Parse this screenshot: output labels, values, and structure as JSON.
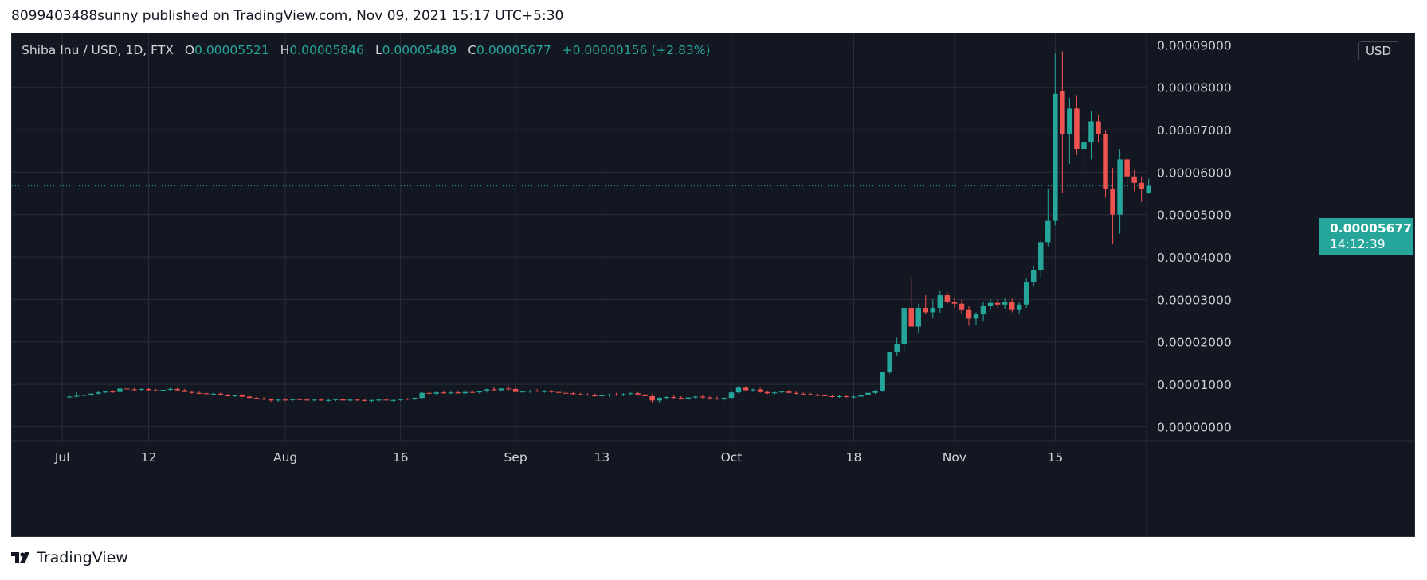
{
  "publish_line": "8099403488sunny published on TradingView.com, Nov 09, 2021 15:17 UTC+5:30",
  "legend": {
    "symbol": "Shiba Inu / USD, 1D, FTX",
    "open_label": "O",
    "open": "0.00005521",
    "high_label": "H",
    "high": "0.00005846",
    "low_label": "L",
    "low": "0.00005489",
    "close_label": "C",
    "close": "0.00005677",
    "change": "+0.00000156 (+2.83%)"
  },
  "currency_button": "USD",
  "last_price": {
    "price": "0.00005677",
    "countdown": "14:12:39",
    "value": 5.677e-05
  },
  "brand": "TradingView",
  "colors": {
    "up": "#26a69a",
    "down": "#ef5350",
    "background": "#131722",
    "grid": "#2a2e39",
    "text": "#d1d4dc"
  },
  "chart_data": {
    "type": "candlestick",
    "price_scale_labels": [
      "0.00009000",
      "0.00008000",
      "0.00007000",
      "0.00006000",
      "0.00005000",
      "0.00004000",
      "0.00003000",
      "0.00002000",
      "0.00001000",
      "0.00000000"
    ],
    "price_scale_values": [
      9e-05,
      8e-05,
      7e-05,
      6e-05,
      5e-05,
      4e-05,
      3e-05,
      2e-05,
      1e-05,
      0
    ],
    "ylim": [
      -3.3e-06,
      9.27e-05
    ],
    "time_axis_labels": [
      {
        "label": "Jul",
        "day": -1
      },
      {
        "label": "12",
        "day": 11
      },
      {
        "label": "Aug",
        "day": 30
      },
      {
        "label": "16",
        "day": 46
      },
      {
        "label": "Sep",
        "day": 62
      },
      {
        "label": "13",
        "day": 74
      },
      {
        "label": "Oct",
        "day": 92
      },
      {
        "label": "18",
        "day": 109
      },
      {
        "label": "Nov",
        "day": 123
      },
      {
        "label": "15",
        "day": 137
      }
    ],
    "xlim": [
      -8,
      149.7
    ],
    "day_zero": "2021-07-01",
    "candles_ohlc": [
      [
        7e-06,
        7.3e-06,
        6.8e-06,
        7.1e-06
      ],
      [
        7.1e-06,
        8.1e-06,
        6.9e-06,
        7.3e-06
      ],
      [
        7.3e-06,
        7.7e-06,
        7.1e-06,
        7.5e-06
      ],
      [
        7.5e-06,
        7.9e-06,
        7.3e-06,
        7.8e-06
      ],
      [
        7.8e-06,
        8.5e-06,
        7.6e-06,
        8.1e-06
      ],
      [
        8.1e-06,
        8.4e-06,
        7.9e-06,
        8.3e-06
      ],
      [
        8.3e-06,
        8.6e-06,
        8e-06,
        8.2e-06
      ],
      [
        8.2e-06,
        9.2e-06,
        8e-06,
        9e-06
      ],
      [
        9e-06,
        9.2e-06,
        8.6e-06,
        8.8e-06
      ],
      [
        8.8e-06,
        9.1e-06,
        8.4e-06,
        8.7e-06
      ],
      [
        8.7e-06,
        9e-06,
        8.4e-06,
        8.9e-06
      ],
      [
        8.9e-06,
        9.1e-06,
        8.5e-06,
        8.6e-06
      ],
      [
        8.6e-06,
        8.9e-06,
        8.3e-06,
        8.5e-06
      ],
      [
        8.5e-06,
        8.8e-06,
        8.3e-06,
        8.7e-06
      ],
      [
        8.7e-06,
        9.2e-06,
        8.5e-06,
        8.9e-06
      ],
      [
        8.9e-06,
        9.2e-06,
        8.5e-06,
        8.6e-06
      ],
      [
        8.6e-06,
        8.9e-06,
        8.2e-06,
        8.2e-06
      ],
      [
        8.2e-06,
        8.4e-06,
        7.8e-06,
        8e-06
      ],
      [
        8e-06,
        8.3e-06,
        7.7e-06,
        7.9e-06
      ],
      [
        7.9e-06,
        8.1e-06,
        7.5e-06,
        7.7e-06
      ],
      [
        7.7e-06,
        8e-06,
        7.4e-06,
        7.8e-06
      ],
      [
        7.8e-06,
        8.1e-06,
        7.4e-06,
        7.5e-06
      ],
      [
        7.5e-06,
        7.8e-06,
        7.1e-06,
        7.2e-06
      ],
      [
        7.2e-06,
        7.6e-06,
        7e-06,
        7.4e-06
      ],
      [
        7.4e-06,
        7.7e-06,
        7e-06,
        7.1e-06
      ],
      [
        7.1e-06,
        7.4e-06,
        6.7e-06,
        6.8e-06
      ],
      [
        6.8e-06,
        7.1e-06,
        6.5e-06,
        6.6e-06
      ],
      [
        6.6e-06,
        7e-06,
        6.3e-06,
        6.5e-06
      ],
      [
        6.5e-06,
        6.7e-06,
        5.9e-06,
        6.2e-06
      ],
      [
        6.2e-06,
        6.6e-06,
        5.9e-06,
        6.4e-06
      ],
      [
        6.4e-06,
        6.7e-06,
        6.1e-06,
        6.3e-06
      ],
      [
        6.3e-06,
        6.6e-06,
        6e-06,
        6.5e-06
      ],
      [
        6.5e-06,
        6.8e-06,
        6.2e-06,
        6.4e-06
      ],
      [
        6.4e-06,
        6.7e-06,
        6.1e-06,
        6.3e-06
      ],
      [
        6.3e-06,
        6.6e-06,
        6e-06,
        6.4e-06
      ],
      [
        6.4e-06,
        6.7e-06,
        6.1e-06,
        6.2e-06
      ],
      [
        6.2e-06,
        6.5e-06,
        5.9e-06,
        6.3e-06
      ],
      [
        6.3e-06,
        6.6e-06,
        6e-06,
        6.5e-06
      ],
      [
        6.5e-06,
        6.7e-06,
        6.1e-06,
        6.2e-06
      ],
      [
        6.2e-06,
        6.5e-06,
        6e-06,
        6.4e-06
      ],
      [
        6.4e-06,
        6.6e-06,
        6.1e-06,
        6.3e-06
      ],
      [
        6.3e-06,
        6.6e-06,
        6e-06,
        6.1e-06
      ],
      [
        6.1e-06,
        6.4e-06,
        5.8e-06,
        6.3e-06
      ],
      [
        6.3e-06,
        6.6e-06,
        6e-06,
        6.4e-06
      ],
      [
        6.4e-06,
        6.7e-06,
        6.1e-06,
        6.2e-06
      ],
      [
        6.2e-06,
        6.5e-06,
        5.9e-06,
        6.3e-06
      ],
      [
        6.3e-06,
        6.6e-06,
        6.1e-06,
        6.6e-06
      ],
      [
        6.6e-06,
        6.8e-06,
        6.3e-06,
        6.5e-06
      ],
      [
        6.5e-06,
        6.9e-06,
        6.3e-06,
        6.8e-06
      ],
      [
        6.8e-06,
        8.2e-06,
        6.6e-06,
        8e-06
      ],
      [
        8e-06,
        8.5e-06,
        7.6e-06,
        7.8e-06
      ],
      [
        7.8e-06,
        8.3e-06,
        7.5e-06,
        8.1e-06
      ],
      [
        8.1e-06,
        8.4e-06,
        7.8e-06,
        7.9e-06
      ],
      [
        7.9e-06,
        8.3e-06,
        7.7e-06,
        8.1e-06
      ],
      [
        8.1e-06,
        8.5e-06,
        7.8e-06,
        7.9e-06
      ],
      [
        7.9e-06,
        8.3e-06,
        7.6e-06,
        8.2e-06
      ],
      [
        8.2e-06,
        8.6e-06,
        7.9e-06,
        8.1e-06
      ],
      [
        8.1e-06,
        8.5e-06,
        7.8e-06,
        8.4e-06
      ],
      [
        8.4e-06,
        9e-06,
        8.1e-06,
        8.8e-06
      ],
      [
        8.8e-06,
        9.3e-06,
        8.4e-06,
        8.6e-06
      ],
      [
        8.6e-06,
        9.1e-06,
        8.3e-06,
        9e-06
      ],
      [
        9e-06,
        9.7e-06,
        8.6e-06,
        8.9e-06
      ],
      [
        8.9e-06,
        9.5e-06,
        8.4e-06,
        8.2e-06
      ],
      [
        8.2e-06,
        8.6e-06,
        7.9e-06,
        8.3e-06
      ],
      [
        8.3e-06,
        8.7e-06,
        8e-06,
        8.5e-06
      ],
      [
        8.5e-06,
        8.9e-06,
        8.2e-06,
        8.3e-06
      ],
      [
        8.3e-06,
        8.7e-06,
        8e-06,
        8.4e-06
      ],
      [
        8.4e-06,
        8.7e-06,
        8e-06,
        8.2e-06
      ],
      [
        8.2e-06,
        8.5e-06,
        7.8e-06,
        8e-06
      ],
      [
        8e-06,
        8.3e-06,
        7.7e-06,
        7.9e-06
      ],
      [
        7.9e-06,
        8.2e-06,
        7.6e-06,
        7.7e-06
      ],
      [
        7.7e-06,
        8e-06,
        7.4e-06,
        7.6e-06
      ],
      [
        7.6e-06,
        7.9e-06,
        7.3e-06,
        7.5e-06
      ],
      [
        7.5e-06,
        7.8e-06,
        7.1e-06,
        7.2e-06
      ],
      [
        7.2e-06,
        7.6e-06,
        6.9e-06,
        7.4e-06
      ],
      [
        7.4e-06,
        7.8e-06,
        7.1e-06,
        7.6e-06
      ],
      [
        7.6e-06,
        8e-06,
        7.3e-06,
        7.5e-06
      ],
      [
        7.5e-06,
        7.9e-06,
        7.2e-06,
        7.7e-06
      ],
      [
        7.7e-06,
        8.1e-06,
        7.4e-06,
        7.9e-06
      ],
      [
        7.9e-06,
        8.2e-06,
        7.5e-06,
        7.6e-06
      ],
      [
        7.6e-06,
        8e-06,
        7.2e-06,
        7.2e-06
      ],
      [
        7.2e-06,
        7.7e-06,
        5.5e-06,
        6.2e-06
      ],
      [
        6.2e-06,
        7e-06,
        5.7e-06,
        6.8e-06
      ],
      [
        6.8e-06,
        7.2e-06,
        6.4e-06,
        7e-06
      ],
      [
        7e-06,
        7.4e-06,
        6.6e-06,
        6.8e-06
      ],
      [
        6.8e-06,
        7.2e-06,
        6.4e-06,
        6.6e-06
      ],
      [
        6.6e-06,
        7e-06,
        6.2e-06,
        6.9e-06
      ],
      [
        6.9e-06,
        7.3e-06,
        6.5e-06,
        7.1e-06
      ],
      [
        7.1e-06,
        7.5e-06,
        6.7e-06,
        6.9e-06
      ],
      [
        6.9e-06,
        7.2e-06,
        6.4e-06,
        6.7e-06
      ],
      [
        6.7e-06,
        7.1e-06,
        6.3e-06,
        6.5e-06
      ],
      [
        6.5e-06,
        6.9e-06,
        6.2e-06,
        6.8e-06
      ],
      [
        6.8e-06,
        8.3e-06,
        6.6e-06,
        8.1e-06
      ],
      [
        8.1e-06,
        9.7e-06,
        7.8e-06,
        9.2e-06
      ],
      [
        9.2e-06,
        9.6e-06,
        8.4e-06,
        8.6e-06
      ],
      [
        8.6e-06,
        9e-06,
        8.2e-06,
        8.8e-06
      ],
      [
        8.8e-06,
        9.2e-06,
        8e-06,
        8.2e-06
      ],
      [
        8.2e-06,
        8.5e-06,
        7.7e-06,
        7.9e-06
      ],
      [
        7.9e-06,
        8.3e-06,
        7.6e-06,
        8.1e-06
      ],
      [
        8.1e-06,
        8.5e-06,
        7.8e-06,
        8.3e-06
      ],
      [
        8.3e-06,
        8.6e-06,
        7.9e-06,
        8e-06
      ],
      [
        8e-06,
        8.3e-06,
        7.6e-06,
        7.8e-06
      ],
      [
        7.8e-06,
        8.1e-06,
        7.5e-06,
        7.7e-06
      ],
      [
        7.7e-06,
        8e-06,
        7.4e-06,
        7.5e-06
      ],
      [
        7.5e-06,
        7.8e-06,
        7.2e-06,
        7.4e-06
      ],
      [
        7.4e-06,
        7.7e-06,
        7.1e-06,
        7.2e-06
      ],
      [
        7.2e-06,
        7.5e-06,
        6.9e-06,
        7.1e-06
      ],
      [
        7.1e-06,
        7.4e-06,
        6.8e-06,
        7.2e-06
      ],
      [
        7.2e-06,
        7.5e-06,
        6.9e-06,
        7e-06
      ],
      [
        7e-06,
        7.3e-06,
        6.7e-06,
        7.1e-06
      ],
      [
        7.1e-06,
        7.5e-06,
        6.8e-06,
        7.4e-06
      ],
      [
        7.4e-06,
        8.2e-06,
        7.2e-06,
        8e-06
      ],
      [
        8e-06,
        8.7e-06,
        7.7e-06,
        8.4e-06
      ],
      [
        8.4e-06,
        1.08e-05,
        8.2e-06,
        1.3e-05
      ],
      [
        1.3e-05,
        1.6e-05,
        1.25e-05,
        1.75e-05
      ],
      [
        1.75e-05,
        2.1e-05,
        1.68e-05,
        1.95e-05
      ],
      [
        1.95e-05,
        2.4e-05,
        1.8e-05,
        2.8e-05
      ],
      [
        2.8e-05,
        3.52e-05,
        2.5e-05,
        2.36e-05
      ],
      [
        2.36e-05,
        2.9e-05,
        2.2e-05,
        2.8e-05
      ],
      [
        2.8e-05,
        3.1e-05,
        2.65e-05,
        2.7e-05
      ],
      [
        2.7e-05,
        3e-05,
        2.55e-05,
        2.8e-05
      ],
      [
        2.8e-05,
        3.2e-05,
        2.68e-05,
        3.1e-05
      ],
      [
        3.1e-05,
        3.18e-05,
        2.9e-05,
        2.95e-05
      ],
      [
        2.95e-05,
        3.05e-05,
        2.8e-05,
        2.9e-05
      ],
      [
        2.9e-05,
        3e-05,
        2.65e-05,
        2.75e-05
      ],
      [
        2.75e-05,
        2.85e-05,
        2.38e-05,
        2.55e-05
      ],
      [
        2.55e-05,
        2.7e-05,
        2.4e-05,
        2.65e-05
      ],
      [
        2.65e-05,
        2.95e-05,
        2.5e-05,
        2.85e-05
      ],
      [
        2.85e-05,
        3e-05,
        2.75e-05,
        2.92e-05
      ],
      [
        2.92e-05,
        3e-05,
        2.8e-05,
        2.88e-05
      ],
      [
        2.88e-05,
        3.02e-05,
        2.78e-05,
        2.95e-05
      ],
      [
        2.95e-05,
        3.02e-05,
        2.7e-05,
        2.75e-05
      ],
      [
        2.75e-05,
        2.95e-05,
        2.65e-05,
        2.88e-05
      ],
      [
        2.88e-05,
        3.5e-05,
        2.8e-05,
        3.4e-05
      ],
      [
        3.4e-05,
        3.8e-05,
        3.3e-05,
        3.7e-05
      ],
      [
        3.7e-05,
        4.4e-05,
        3.5e-05,
        4.35e-05
      ],
      [
        4.35e-05,
        5.6e-05,
        4.25e-05,
        4.85e-05
      ],
      [
        4.85e-05,
        8.8e-05,
        4.75e-05,
        7.85e-05
      ],
      [
        7.9e-05,
        8.85e-05,
        5.5e-05,
        6.9e-05
      ],
      [
        6.9e-05,
        7.75e-05,
        6.2e-05,
        7.5e-05
      ],
      [
        7.5e-05,
        7.8e-05,
        6.4e-05,
        6.55e-05
      ],
      [
        6.55e-05,
        7.2e-05,
        6e-05,
        6.7e-05
      ],
      [
        6.7e-05,
        7.45e-05,
        6.3e-05,
        7.2e-05
      ],
      [
        7.2e-05,
        7.35e-05,
        6.7e-05,
        6.9e-05
      ],
      [
        6.9e-05,
        7e-05,
        5.4e-05,
        5.6e-05
      ],
      [
        5.6e-05,
        6.1e-05,
        4.3e-05,
        5e-05
      ],
      [
        5e-05,
        6.55e-05,
        4.55e-05,
        6.3e-05
      ],
      [
        6.3e-05,
        6.35e-05,
        5.6e-05,
        5.9e-05
      ],
      [
        5.9e-05,
        6.05e-05,
        5.55e-05,
        5.75e-05
      ],
      [
        5.75e-05,
        5.9e-05,
        5.3e-05,
        5.6e-05
      ],
      [
        5.52e-05,
        5.85e-05,
        5.49e-05,
        5.68e-05
      ]
    ]
  }
}
